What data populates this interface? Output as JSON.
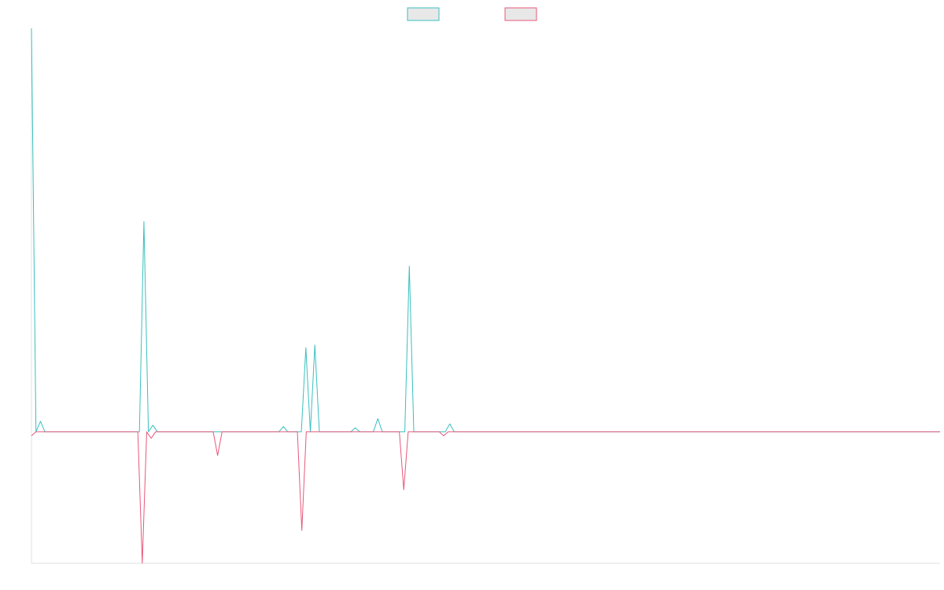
{
  "chart_data": {
    "type": "line",
    "title": "",
    "xlabel": "",
    "ylabel": "",
    "grid": false,
    "legend": "top-center",
    "ylim": [
      -1.0,
      3.07
    ],
    "series": [
      {
        "color": "#3bbfbf",
        "values": [
          3.07,
          0.0,
          0.08,
          0.0,
          0.0,
          0.0,
          0.0,
          0.0,
          0.0,
          0.0,
          0.0,
          0.0,
          0.0,
          0.0,
          0.0,
          0.0,
          0.0,
          0.0,
          0.0,
          0.0,
          0.0,
          0.0,
          0.0,
          0.0,
          0.0,
          1.6,
          0.0,
          0.05,
          0.0,
          0.0,
          0.0,
          0.0,
          0.0,
          0.0,
          0.0,
          0.0,
          0.0,
          0.0,
          0.0,
          0.0,
          0.0,
          0.0,
          0.0,
          0.0,
          0.0,
          0.0,
          0.0,
          0.0,
          0.0,
          0.0,
          0.0,
          0.0,
          0.0,
          0.0,
          0.0,
          0.0,
          0.04,
          0.0,
          0.0,
          0.0,
          0.0,
          0.64,
          0.0,
          0.66,
          0.0,
          0.0,
          0.0,
          0.0,
          0.0,
          0.0,
          0.0,
          0.0,
          0.03,
          0.0,
          0.0,
          0.0,
          0.0,
          0.1,
          0.0,
          0.0,
          0.0,
          0.0,
          0.0,
          0.0,
          1.26,
          0.0,
          0.0,
          0.0,
          0.0,
          0.0,
          0.0,
          0.0,
          0.0,
          0.06,
          0.0,
          0.0,
          0.0,
          0.0,
          0.0,
          0.0,
          0.0,
          0.0,
          0.0,
          0.0,
          0.0,
          0.0,
          0.0,
          0.0,
          0.0,
          0.0,
          0.0,
          0.0,
          0.0,
          0.0,
          0.0,
          0.0,
          0.0,
          0.0,
          0.0,
          0.0,
          0.0,
          0.0,
          0.0,
          0.0,
          0.0,
          0.0,
          0.0,
          0.0,
          0.0,
          0.0,
          0.0,
          0.0,
          0.0,
          0.0,
          0.0,
          0.0,
          0.0,
          0.0,
          0.0,
          0.0,
          0.0,
          0.0,
          0.0,
          0.0,
          0.0,
          0.0,
          0.0,
          0.0,
          0.0,
          0.0,
          0.0,
          0.0,
          0.0,
          0.0,
          0.0,
          0.0,
          0.0,
          0.0,
          0.0,
          0.0,
          0.0,
          0.0,
          0.0,
          0.0,
          0.0,
          0.0,
          0.0,
          0.0,
          0.0,
          0.0,
          0.0,
          0.0,
          0.0,
          0.0,
          0.0,
          0.0,
          0.0,
          0.0,
          0.0,
          0.0,
          0.0,
          0.0,
          0.0,
          0.0,
          0.0,
          0.0,
          0.0,
          0.0,
          0.0,
          0.0,
          0.0,
          0.0,
          0.0,
          0.0,
          0.0,
          0.0,
          0.0,
          0.0,
          0.0,
          0.0,
          0.0,
          0.0,
          0.0
        ]
      },
      {
        "color": "#e8587a",
        "values": [
          -0.03,
          0.0,
          0.0,
          0.0,
          0.0,
          0.0,
          0.0,
          0.0,
          0.0,
          0.0,
          0.0,
          0.0,
          0.0,
          0.0,
          0.0,
          0.0,
          0.0,
          0.0,
          0.0,
          0.0,
          0.0,
          0.0,
          0.0,
          0.0,
          0.0,
          -1.0,
          0.0,
          -0.05,
          0.0,
          0.0,
          0.0,
          0.0,
          0.0,
          0.0,
          0.0,
          0.0,
          0.0,
          0.0,
          0.0,
          0.0,
          0.0,
          0.0,
          -0.18,
          0.0,
          0.0,
          0.0,
          0.0,
          0.0,
          0.0,
          0.0,
          0.0,
          0.0,
          0.0,
          0.0,
          0.0,
          0.0,
          0.0,
          0.0,
          0.0,
          0.0,
          0.0,
          -0.75,
          0.0,
          0.0,
          0.0,
          0.0,
          0.0,
          0.0,
          0.0,
          0.0,
          0.0,
          0.0,
          0.0,
          0.0,
          0.0,
          0.0,
          0.0,
          0.0,
          0.0,
          0.0,
          0.0,
          0.0,
          0.0,
          0.0,
          -0.44,
          0.0,
          0.0,
          0.0,
          0.0,
          0.0,
          0.0,
          0.0,
          0.0,
          -0.03,
          0.0,
          0.0,
          0.0,
          0.0,
          0.0,
          0.0,
          0.0,
          0.0,
          0.0,
          0.0,
          0.0,
          0.0,
          0.0,
          0.0,
          0.0,
          0.0,
          0.0,
          0.0,
          0.0,
          0.0,
          0.0,
          0.0,
          0.0,
          0.0,
          0.0,
          0.0,
          0.0,
          0.0,
          0.0,
          0.0,
          0.0,
          0.0,
          0.0,
          0.0,
          0.0,
          0.0,
          0.0,
          0.0,
          0.0,
          0.0,
          0.0,
          0.0,
          0.0,
          0.0,
          0.0,
          0.0,
          0.0,
          0.0,
          0.0,
          0.0,
          0.0,
          0.0,
          0.0,
          0.0,
          0.0,
          0.0,
          0.0,
          0.0,
          0.0,
          0.0,
          0.0,
          0.0,
          0.0,
          0.0,
          0.0,
          0.0,
          0.0,
          0.0,
          0.0,
          0.0,
          0.0,
          0.0,
          0.0,
          0.0,
          0.0,
          0.0,
          0.0,
          0.0,
          0.0,
          0.0,
          0.0,
          0.0,
          0.0,
          0.0,
          0.0,
          0.0,
          0.0,
          0.0,
          0.0,
          0.0,
          0.0,
          0.0,
          0.0,
          0.0,
          0.0,
          0.0,
          0.0,
          0.0,
          0.0,
          0.0,
          0.0,
          0.0,
          0.0,
          0.0,
          0.0,
          0.0,
          0.0,
          0.0,
          0.0,
          0.0,
          0.0,
          0.0
        ]
      }
    ]
  }
}
